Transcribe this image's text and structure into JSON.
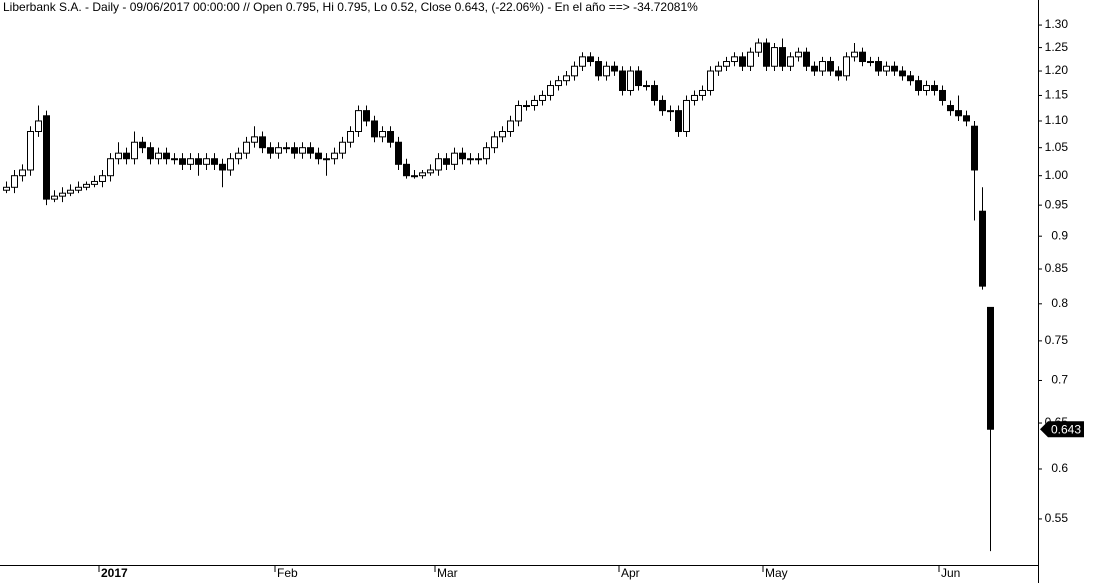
{
  "chart_data": {
    "type": "candlestick",
    "title": "Liberbank S.A. - Daily - 09/06/2017 00:00:00 // Open 0.795, Hi 0.795, Lo 0.52, Close 0.643, (-22.06%) - En el año ==> -34.72081%",
    "categories": [
      null,
      null,
      null,
      null,
      null,
      null,
      null,
      null,
      null,
      null,
      null,
      null,
      "2017",
      null,
      null,
      null,
      null,
      null,
      null,
      null,
      null,
      null,
      null,
      null,
      null,
      null,
      null,
      null,
      null,
      null,
      null,
      null,
      null,
      null,
      "Feb",
      null,
      null,
      null,
      null,
      null,
      null,
      null,
      null,
      null,
      null,
      null,
      null,
      null,
      null,
      null,
      null,
      null,
      null,
      null,
      "Mar",
      null,
      null,
      null,
      null,
      null,
      null,
      null,
      null,
      null,
      null,
      null,
      null,
      null,
      null,
      null,
      null,
      null,
      null,
      null,
      null,
      null,
      null,
      "Apr",
      null,
      null,
      null,
      null,
      null,
      null,
      null,
      null,
      null,
      null,
      null,
      null,
      null,
      null,
      null,
      null,
      null,
      "May",
      null,
      null,
      null,
      null,
      null,
      null,
      null,
      null,
      null,
      null,
      null,
      null,
      null,
      null,
      null,
      null,
      null,
      null,
      null,
      null,
      null,
      "Jun",
      null,
      null,
      null,
      null,
      null,
      null
    ],
    "open": [
      0.975,
      0.98,
      1.0,
      1.01,
      1.08,
      1.11,
      0.96,
      0.965,
      0.97,
      0.975,
      0.98,
      0.985,
      0.99,
      1.0,
      1.03,
      1.04,
      1.03,
      1.06,
      1.05,
      1.03,
      1.04,
      1.03,
      1.03,
      1.02,
      1.03,
      1.02,
      1.03,
      1.02,
      1.01,
      1.03,
      1.04,
      1.06,
      1.07,
      1.05,
      1.04,
      1.05,
      1.05,
      1.04,
      1.05,
      1.04,
      1.03,
      1.03,
      1.04,
      1.06,
      1.08,
      1.12,
      1.1,
      1.07,
      1.08,
      1.06,
      1.02,
      1.0,
      1.0,
      1.005,
      1.01,
      1.03,
      1.02,
      1.04,
      1.03,
      1.03,
      1.03,
      1.05,
      1.07,
      1.08,
      1.1,
      1.13,
      1.13,
      1.14,
      1.15,
      1.17,
      1.18,
      1.19,
      1.21,
      1.23,
      1.22,
      1.19,
      1.21,
      1.2,
      1.16,
      1.2,
      1.17,
      1.17,
      1.14,
      1.12,
      1.12,
      1.08,
      1.14,
      1.15,
      1.16,
      1.2,
      1.21,
      1.22,
      1.23,
      1.21,
      1.24,
      1.26,
      1.21,
      1.25,
      1.21,
      1.23,
      1.24,
      1.21,
      1.2,
      1.22,
      1.2,
      1.19,
      1.23,
      1.24,
      1.22,
      1.22,
      1.2,
      1.21,
      1.2,
      1.19,
      1.18,
      1.16,
      1.17,
      1.16,
      1.13,
      1.12,
      1.11,
      1.09,
      0.94,
      0.795
    ],
    "high": [
      0.99,
      1.01,
      1.02,
      1.09,
      1.13,
      1.12,
      0.975,
      0.98,
      0.985,
      0.99,
      0.99,
      1.0,
      1.01,
      1.04,
      1.06,
      1.05,
      1.08,
      1.07,
      1.06,
      1.05,
      1.05,
      1.04,
      1.04,
      1.04,
      1.04,
      1.04,
      1.04,
      1.03,
      1.04,
      1.05,
      1.07,
      1.09,
      1.08,
      1.06,
      1.06,
      1.06,
      1.06,
      1.06,
      1.06,
      1.05,
      1.04,
      1.05,
      1.07,
      1.09,
      1.13,
      1.13,
      1.11,
      1.09,
      1.09,
      1.07,
      1.03,
      1.01,
      1.01,
      1.02,
      1.04,
      1.04,
      1.05,
      1.05,
      1.04,
      1.04,
      1.06,
      1.08,
      1.09,
      1.11,
      1.14,
      1.14,
      1.15,
      1.16,
      1.18,
      1.19,
      1.2,
      1.22,
      1.24,
      1.24,
      1.23,
      1.22,
      1.22,
      1.21,
      1.21,
      1.21,
      1.18,
      1.18,
      1.15,
      1.13,
      1.13,
      1.15,
      1.16,
      1.17,
      1.21,
      1.22,
      1.23,
      1.24,
      1.24,
      1.25,
      1.27,
      1.27,
      1.26,
      1.27,
      1.24,
      1.25,
      1.25,
      1.22,
      1.23,
      1.23,
      1.21,
      1.24,
      1.26,
      1.25,
      1.23,
      1.23,
      1.22,
      1.22,
      1.21,
      1.2,
      1.19,
      1.18,
      1.18,
      1.17,
      1.14,
      1.15,
      1.12,
      1.1,
      0.98,
      0.795
    ],
    "low": [
      0.97,
      0.97,
      0.99,
      1.0,
      1.07,
      0.95,
      0.955,
      0.955,
      0.965,
      0.97,
      0.975,
      0.98,
      0.98,
      0.99,
      1.02,
      1.02,
      1.02,
      1.04,
      1.02,
      1.02,
      1.02,
      1.02,
      1.01,
      1.01,
      1.0,
      1.01,
      1.01,
      0.98,
      1.0,
      1.02,
      1.03,
      1.05,
      1.04,
      1.03,
      1.03,
      1.04,
      1.03,
      1.03,
      1.03,
      1.02,
      1.0,
      1.02,
      1.03,
      1.05,
      1.07,
      1.09,
      1.06,
      1.06,
      1.05,
      1.01,
      0.995,
      0.995,
      0.995,
      1.0,
      1.0,
      1.01,
      1.01,
      1.02,
      1.02,
      1.02,
      1.02,
      1.04,
      1.06,
      1.07,
      1.09,
      1.12,
      1.12,
      1.13,
      1.14,
      1.16,
      1.17,
      1.18,
      1.2,
      1.21,
      1.18,
      1.18,
      1.19,
      1.15,
      1.15,
      1.16,
      1.16,
      1.13,
      1.11,
      1.1,
      1.07,
      1.07,
      1.13,
      1.14,
      1.15,
      1.19,
      1.2,
      1.21,
      1.2,
      1.2,
      1.23,
      1.2,
      1.2,
      1.2,
      1.2,
      1.22,
      1.2,
      1.19,
      1.19,
      1.19,
      1.18,
      1.18,
      1.22,
      1.21,
      1.21,
      1.19,
      1.19,
      1.19,
      1.18,
      1.17,
      1.15,
      1.15,
      1.15,
      1.13,
      1.11,
      1.1,
      1.09,
      0.925,
      0.82,
      0.52
    ],
    "close": [
      0.98,
      1.0,
      1.01,
      1.08,
      1.1,
      0.96,
      0.965,
      0.97,
      0.975,
      0.98,
      0.985,
      0.99,
      1.0,
      1.03,
      1.04,
      1.03,
      1.06,
      1.05,
      1.03,
      1.04,
      1.03,
      1.03,
      1.02,
      1.03,
      1.02,
      1.03,
      1.02,
      1.01,
      1.03,
      1.04,
      1.06,
      1.07,
      1.05,
      1.04,
      1.05,
      1.05,
      1.04,
      1.05,
      1.04,
      1.03,
      1.03,
      1.04,
      1.06,
      1.08,
      1.12,
      1.1,
      1.07,
      1.08,
      1.06,
      1.02,
      1.0,
      1.0,
      1.005,
      1.01,
      1.03,
      1.02,
      1.04,
      1.03,
      1.03,
      1.03,
      1.05,
      1.07,
      1.08,
      1.1,
      1.13,
      1.13,
      1.14,
      1.15,
      1.17,
      1.18,
      1.19,
      1.21,
      1.23,
      1.22,
      1.19,
      1.21,
      1.2,
      1.16,
      1.2,
      1.17,
      1.17,
      1.14,
      1.12,
      1.12,
      1.08,
      1.14,
      1.15,
      1.16,
      1.2,
      1.21,
      1.22,
      1.23,
      1.21,
      1.24,
      1.26,
      1.21,
      1.25,
      1.21,
      1.23,
      1.24,
      1.21,
      1.2,
      1.22,
      1.2,
      1.19,
      1.23,
      1.24,
      1.22,
      1.22,
      1.2,
      1.21,
      1.2,
      1.19,
      1.18,
      1.16,
      1.17,
      1.16,
      1.14,
      1.12,
      1.11,
      1.1,
      1.01,
      0.825,
      0.643
    ],
    "ylim": [
      0.5076,
      1.358
    ],
    "yticks": [
      0.55,
      0.6,
      0.65,
      0.7,
      0.75,
      0.8,
      0.85,
      0.9,
      0.95,
      {
        "value": 1.0,
        "label": "1.00"
      },
      1.05,
      {
        "value": 1.1,
        "label": "1.10"
      },
      1.15,
      {
        "value": 1.2,
        "label": "1.20"
      },
      1.25,
      {
        "value": 1.3,
        "label": "1.30"
      }
    ],
    "log_scale": true,
    "up_color": "#ffffff",
    "down_color": "#000000"
  }
}
